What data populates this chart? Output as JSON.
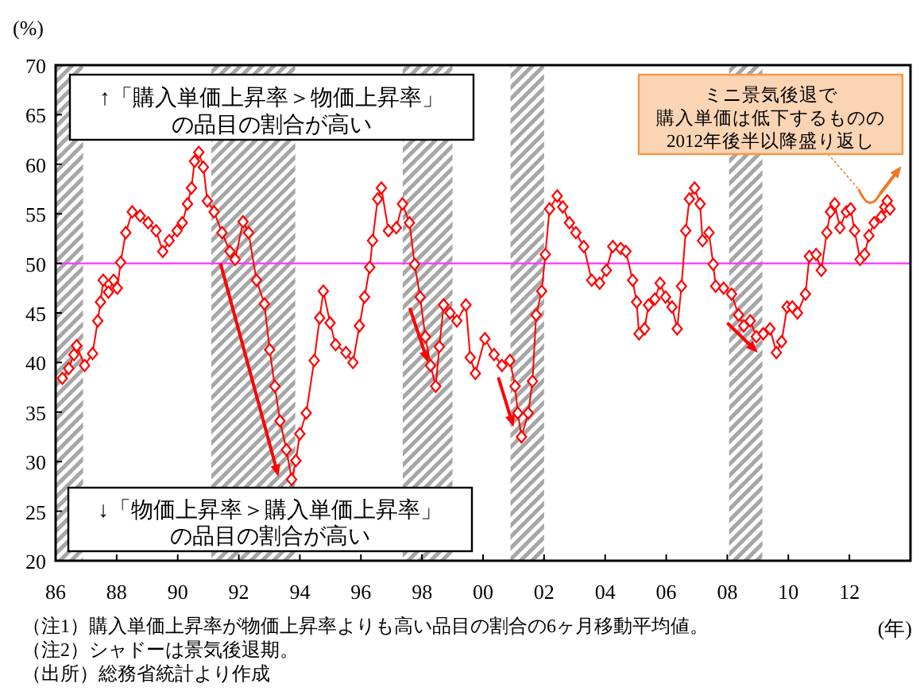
{
  "chart_data": {
    "type": "line",
    "ylabel": "(%)",
    "xlabel": "(年)",
    "marker": "diamond",
    "line_style": "solid",
    "grid": false,
    "xlim": [
      1986,
      2014
    ],
    "ylim": [
      20,
      70
    ],
    "xticks": [
      {
        "value": 1986,
        "label": "86"
      },
      {
        "value": 1988,
        "label": "88"
      },
      {
        "value": 1990,
        "label": "90"
      },
      {
        "value": 1992,
        "label": "92"
      },
      {
        "value": 1994,
        "label": "94"
      },
      {
        "value": 1996,
        "label": "96"
      },
      {
        "value": 1998,
        "label": "98"
      },
      {
        "value": 2000,
        "label": "00"
      },
      {
        "value": 2002,
        "label": "02"
      },
      {
        "value": 2004,
        "label": "04"
      },
      {
        "value": 2006,
        "label": "06"
      },
      {
        "value": 2008,
        "label": "08"
      },
      {
        "value": 2010,
        "label": "10"
      },
      {
        "value": 2012,
        "label": "12"
      }
    ],
    "yticks": [
      20,
      25,
      30,
      35,
      40,
      45,
      50,
      55,
      60,
      65,
      70
    ],
    "series": [
      {
        "color": "#ff0000",
        "x": [
          1986.22,
          1986.43,
          1986.6,
          1986.69,
          1986.95,
          1987.21,
          1987.38,
          1987.47,
          1987.56,
          1987.73,
          1987.9,
          1988.02,
          1988.13,
          1988.3,
          1988.51,
          1988.77,
          1989.03,
          1989.29,
          1989.51,
          1989.72,
          1989.98,
          1990.15,
          1990.32,
          1990.45,
          1990.55,
          1990.69,
          1990.84,
          1990.97,
          1991.19,
          1991.45,
          1991.71,
          1991.88,
          1992.14,
          1992.32,
          1992.58,
          1992.84,
          1993.01,
          1993.18,
          1993.35,
          1993.56,
          1993.73,
          1993.87,
          1994.0,
          1994.21,
          1994.47,
          1994.65,
          1994.77,
          1994.99,
          1995.17,
          1995.51,
          1995.74,
          1995.95,
          1996.12,
          1996.29,
          1996.38,
          1996.55,
          1996.67,
          1996.9,
          1997.16,
          1997.36,
          1997.59,
          1997.76,
          1997.94,
          1998.11,
          1998.28,
          1998.45,
          1998.57,
          1998.71,
          1998.92,
          1999.14,
          1999.44,
          1999.58,
          1999.75,
          2000.06,
          2000.36,
          2000.62,
          2000.88,
          2001.05,
          2001.14,
          2001.26,
          2001.48,
          2001.62,
          2001.74,
          2001.92,
          2002.04,
          2002.18,
          2002.43,
          2002.61,
          2002.83,
          2003.04,
          2003.3,
          2003.56,
          2003.82,
          2004.04,
          2004.25,
          2004.51,
          2004.68,
          2004.9,
          2005.03,
          2005.11,
          2005.29,
          2005.42,
          2005.63,
          2005.8,
          2005.98,
          2006.19,
          2006.36,
          2006.5,
          2006.64,
          2006.76,
          2006.93,
          2007.11,
          2007.19,
          2007.4,
          2007.54,
          2007.62,
          2007.88,
          2008.14,
          2008.37,
          2008.54,
          2008.75,
          2008.95,
          2009.18,
          2009.4,
          2009.61,
          2009.78,
          2009.96,
          2010.13,
          2010.3,
          2010.56,
          2010.69,
          2010.91,
          2011.08,
          2011.26,
          2011.38,
          2011.52,
          2011.69,
          2011.9,
          2012.04,
          2012.17,
          2012.35,
          2012.5,
          2012.64,
          2012.81,
          2013.04,
          2013.16,
          2013.24,
          2013.33
        ],
        "values": [
          38.4,
          39.4,
          40.8,
          41.7,
          39.7,
          40.9,
          44.2,
          46.1,
          48.3,
          47.1,
          48.3,
          47.5,
          50.1,
          53.1,
          55.2,
          54.8,
          54.1,
          53.3,
          51.2,
          52.3,
          53.3,
          54.1,
          56.0,
          57.6,
          60.3,
          61.2,
          59.7,
          56.3,
          55.2,
          53.1,
          51.2,
          50.4,
          54.2,
          53.1,
          48.3,
          45.9,
          41.3,
          37.6,
          34.1,
          31.2,
          28.2,
          30.1,
          32.8,
          34.9,
          40.2,
          44.5,
          47.2,
          44.0,
          41.8,
          41.0,
          40.0,
          43.7,
          46.6,
          49.6,
          52.3,
          56.5,
          57.6,
          53.3,
          53.6,
          56.0,
          54.1,
          49.9,
          46.6,
          42.6,
          39.7,
          37.6,
          41.6,
          45.8,
          45.0,
          44.2,
          45.8,
          40.5,
          38.9,
          42.4,
          40.8,
          39.7,
          40.2,
          37.6,
          34.9,
          32.5,
          34.9,
          38.1,
          44.8,
          47.2,
          50.9,
          55.5,
          56.8,
          55.7,
          54.1,
          53.1,
          51.7,
          48.3,
          48.0,
          49.3,
          51.7,
          51.5,
          51.2,
          48.3,
          46.1,
          42.9,
          43.4,
          45.8,
          46.4,
          48.0,
          46.6,
          45.6,
          43.4,
          47.7,
          53.3,
          56.5,
          57.6,
          56.0,
          52.3,
          53.1,
          49.9,
          47.7,
          47.5,
          46.9,
          44.8,
          43.7,
          44.2,
          42.6,
          42.9,
          43.4,
          41.0,
          42.1,
          45.6,
          45.6,
          45.0,
          46.9,
          50.7,
          50.9,
          49.3,
          53.1,
          55.2,
          56.0,
          53.6,
          55.2,
          55.5,
          53.3,
          50.4,
          50.9,
          52.8,
          54.1,
          54.7,
          55.7,
          56.3,
          55.5
        ]
      }
    ],
    "ref_lines": [
      {
        "axis": "y",
        "value": 50,
        "color": "#ff33ff"
      }
    ],
    "bands": [
      {
        "axis": "x",
        "from": 1986,
        "to": 1986.9,
        "color": "#a6a6a6"
      },
      {
        "axis": "x",
        "from": 1991.1,
        "to": 1993.85,
        "color": "#a6a6a6"
      },
      {
        "axis": "x",
        "from": 1997.37,
        "to": 1999.0,
        "color": "#a6a6a6"
      },
      {
        "axis": "x",
        "from": 2000.9,
        "to": 2002.0,
        "color": "#a6a6a6"
      },
      {
        "axis": "x",
        "from": 2008.06,
        "to": 2009.15,
        "color": "#a6a6a6"
      }
    ],
    "annotations": [
      "↑「購入単価上昇率＞物価上昇率」",
      "の品目の割合が高い",
      "↓「物価上昇率＞購入単価上昇率」",
      "の品目の割合が高い",
      "ミニ景気後退で",
      "購入単価は低下するものの",
      "2012年後半以降盛り返し",
      "（注1）購入単価上昇率が物価上昇率よりも高い品目の割合の6ヶ月移動平均値。",
      "（注2）シャドーは景気後退期。",
      "（出所）総務省統計より作成"
    ]
  }
}
